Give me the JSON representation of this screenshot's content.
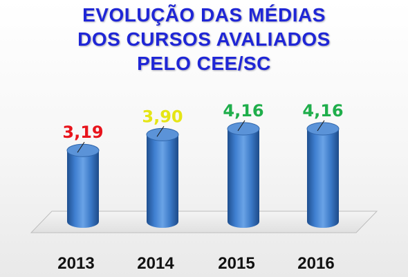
{
  "chart_data": {
    "type": "bar",
    "title_lines": [
      "EVOLUÇÃO DAS MÉDIAS",
      "DOS CURSOS AVALIADOS",
      "PELO CEE/SC"
    ],
    "categories": [
      "2013",
      "2014",
      "2015",
      "2016"
    ],
    "values": [
      3.19,
      3.9,
      4.16,
      4.16
    ],
    "value_labels": [
      "3,19",
      "3,90",
      "4,16",
      "4,16"
    ],
    "label_colors": [
      "#e8141c",
      "#e5e516",
      "#1fae4b",
      "#1fae4b"
    ],
    "bar_color": "#3a79c9",
    "ylim": [
      0,
      4.5
    ],
    "grid": false,
    "legend": "none"
  }
}
